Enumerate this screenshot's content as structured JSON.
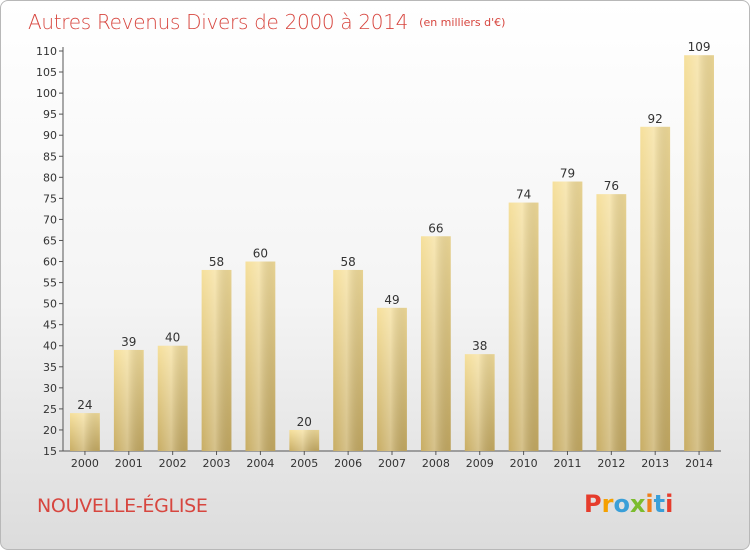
{
  "title": "Autres Revenus Divers de 2000 à 2014",
  "unit": "(en milliers d'€)",
  "place": "NOUVELLE-ÉGLISE",
  "logo": {
    "letters": [
      "P",
      "r",
      "o",
      "x",
      "i",
      "t",
      "i"
    ],
    "colors": [
      "#e63c2c",
      "#f5a000",
      "#3a9fd8",
      "#7cbc2e",
      "#f07e1c",
      "#3a9fd8",
      "#e63c2c"
    ]
  },
  "colors": {
    "bar_light": "#f6e09c",
    "bar_dark": "#c8ad64",
    "title": "#d7463f"
  },
  "chart_data": {
    "type": "bar",
    "categories": [
      "2000",
      "2001",
      "2002",
      "2003",
      "2004",
      "2005",
      "2006",
      "2007",
      "2008",
      "2009",
      "2010",
      "2011",
      "2012",
      "2013",
      "2014"
    ],
    "values": [
      24,
      39,
      40,
      58,
      60,
      20,
      58,
      49,
      66,
      38,
      74,
      79,
      76,
      92,
      109
    ],
    "ylim": [
      15,
      110
    ],
    "yticks": [
      15,
      20,
      25,
      30,
      35,
      40,
      45,
      50,
      55,
      60,
      65,
      70,
      75,
      80,
      85,
      90,
      95,
      100,
      105,
      110
    ],
    "grid": false,
    "data_labels": true
  }
}
